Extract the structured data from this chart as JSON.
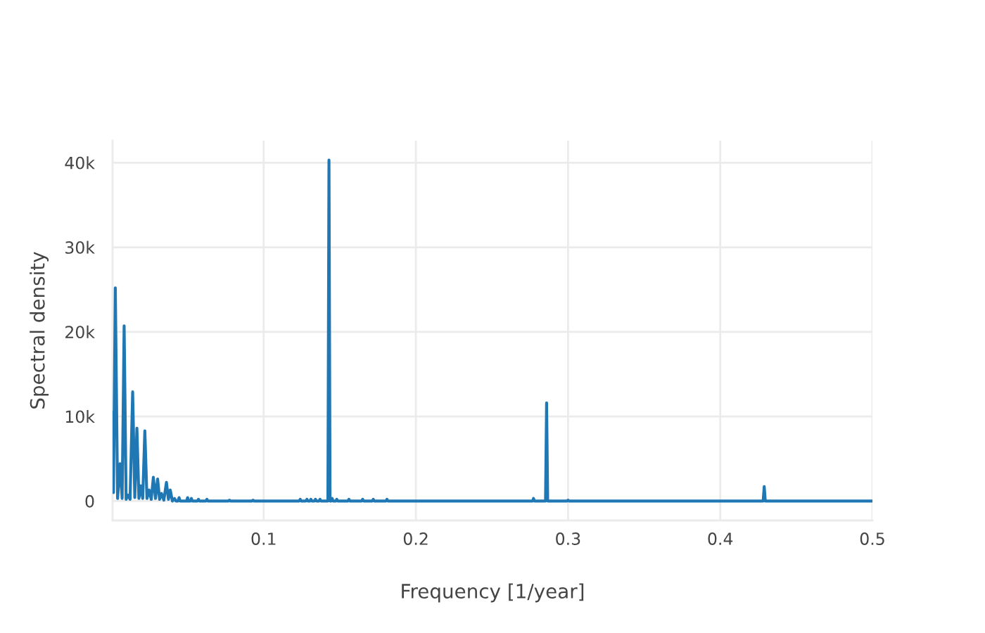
{
  "chart_data": {
    "type": "line",
    "xlabel": "Frequency [1/year]",
    "ylabel": "Spectral density",
    "x": [
      0.0007,
      0.0013,
      0.0025,
      0.004,
      0.0056,
      0.007,
      0.0083,
      0.0096,
      0.0108,
      0.0122,
      0.0139,
      0.0153,
      0.0167,
      0.018,
      0.0192,
      0.0205,
      0.0219,
      0.0233,
      0.0247,
      0.0261,
      0.0275,
      0.0289,
      0.0303,
      0.0316,
      0.0328,
      0.0344,
      0.0361,
      0.0374,
      0.0386,
      0.04,
      0.0414,
      0.0423,
      0.0437,
      0.0444,
      0.0451,
      0.0494,
      0.05,
      0.0506,
      0.0519,
      0.0525,
      0.0531,
      0.0565,
      0.0571,
      0.0577,
      0.0621,
      0.0627,
      0.0633,
      0.0769,
      0.0775,
      0.0781,
      0.0924,
      0.093,
      0.0936,
      0.1234,
      0.124,
      0.1246,
      0.1278,
      0.1284,
      0.129,
      0.1304,
      0.131,
      0.1316,
      0.1334,
      0.134,
      0.1346,
      0.1364,
      0.137,
      0.1376,
      0.1422,
      0.1429,
      0.1436,
      0.1444,
      0.145,
      0.1456,
      0.1474,
      0.148,
      0.1486,
      0.1554,
      0.156,
      0.1566,
      0.1644,
      0.165,
      0.1656,
      0.1714,
      0.172,
      0.1726,
      0.1804,
      0.181,
      0.1816,
      0.2767,
      0.2773,
      0.2779,
      0.2852,
      0.2859,
      0.2866,
      0.2994,
      0.3,
      0.3006,
      0.4282,
      0.4289,
      0.4296,
      0.5
    ],
    "series": [
      {
        "color": "#1f77b4",
        "values": [
          10500,
          1000,
          25200,
          300,
          4400,
          300,
          20700,
          200,
          700,
          200,
          12900,
          400,
          8600,
          300,
          1800,
          300,
          8300,
          300,
          1300,
          200,
          2800,
          300,
          2600,
          200,
          900,
          100,
          2200,
          200,
          1300,
          0,
          300,
          0,
          0,
          400,
          0,
          0,
          400,
          0,
          0,
          300,
          0,
          0,
          200,
          0,
          0,
          200,
          0,
          0,
          100,
          0,
          0,
          100,
          0,
          0,
          200,
          0,
          0,
          200,
          0,
          0,
          200,
          0,
          0,
          200,
          0,
          0,
          200,
          0,
          0,
          40300,
          0,
          0,
          300,
          0,
          0,
          200,
          0,
          0,
          200,
          0,
          0,
          200,
          0,
          0,
          200,
          0,
          0,
          200,
          0,
          0,
          300,
          0,
          0,
          11600,
          0,
          0,
          100,
          0,
          0,
          1700,
          0,
          0
        ]
      }
    ],
    "xlim": [
      0.0007,
      0.5
    ],
    "xticks": [
      0.1,
      0.2,
      0.3,
      0.4,
      0.5
    ],
    "ylim": [
      -2300,
      42600
    ],
    "yticks": [
      0,
      {
        "value": 10000,
        "label": "10k"
      },
      {
        "value": 20000,
        "label": "20k"
      },
      {
        "value": 30000,
        "label": "30k"
      },
      {
        "value": 40000,
        "label": "40k"
      }
    ],
    "grid": true
  }
}
